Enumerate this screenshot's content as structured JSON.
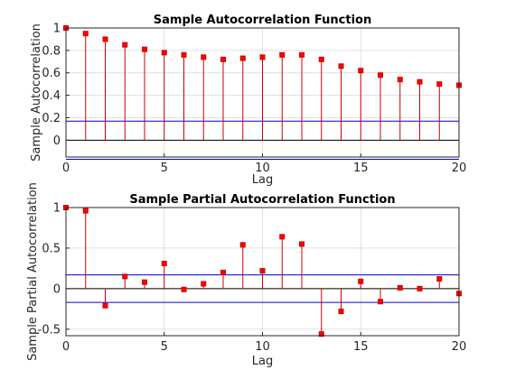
{
  "chart_data": [
    {
      "type": "stem",
      "title": "Sample Autocorrelation Function",
      "xlabel": "Lag",
      "ylabel": "Sample Autocorrelation",
      "xlim": [
        0,
        20
      ],
      "ylim": [
        -0.15,
        1
      ],
      "xticks": [
        0,
        5,
        10,
        15,
        20
      ],
      "yticks": [
        0,
        0.2,
        0.4,
        0.6,
        0.8,
        1
      ],
      "ytick_labels": [
        "0",
        "0.2",
        "0.4",
        "0.6",
        "0.8",
        "1"
      ],
      "grid": true,
      "lags": [
        0,
        1,
        2,
        3,
        4,
        5,
        6,
        7,
        8,
        9,
        10,
        11,
        12,
        13,
        14,
        15,
        16,
        17,
        18,
        19,
        20
      ],
      "values": [
        1.0,
        0.95,
        0.9,
        0.85,
        0.81,
        0.78,
        0.76,
        0.74,
        0.72,
        0.73,
        0.74,
        0.76,
        0.76,
        0.72,
        0.66,
        0.62,
        0.58,
        0.54,
        0.52,
        0.5,
        0.49
      ],
      "bounds": [
        0.17,
        -0.17
      ],
      "colors": {
        "stem": "#cc0000",
        "marker": "#ff0000",
        "bound": "#0000cc"
      }
    },
    {
      "type": "stem",
      "title": "Sample Partial Autocorrelation Function",
      "xlabel": "Lag",
      "ylabel": "Sample Partial Autocorrelation",
      "xlim": [
        0,
        20
      ],
      "ylim": [
        -0.58,
        1
      ],
      "xticks": [
        0,
        5,
        10,
        15,
        20
      ],
      "yticks": [
        -0.5,
        0,
        0.5,
        1
      ],
      "ytick_labels": [
        "-0.5",
        "0",
        "0.5",
        "1"
      ],
      "grid": true,
      "lags": [
        0,
        1,
        2,
        3,
        4,
        5,
        6,
        7,
        8,
        9,
        10,
        11,
        12,
        13,
        14,
        15,
        16,
        17,
        18,
        19,
        20
      ],
      "values": [
        1.0,
        0.96,
        -0.21,
        0.15,
        0.08,
        0.31,
        -0.01,
        0.06,
        0.2,
        0.54,
        0.22,
        0.64,
        0.55,
        -0.56,
        -0.28,
        0.09,
        -0.16,
        0.01,
        0.0,
        0.12,
        -0.06
      ],
      "bounds": [
        0.17,
        -0.17
      ],
      "colors": {
        "stem": "#cc0000",
        "marker": "#ff0000",
        "bound": "#0000cc"
      }
    }
  ]
}
